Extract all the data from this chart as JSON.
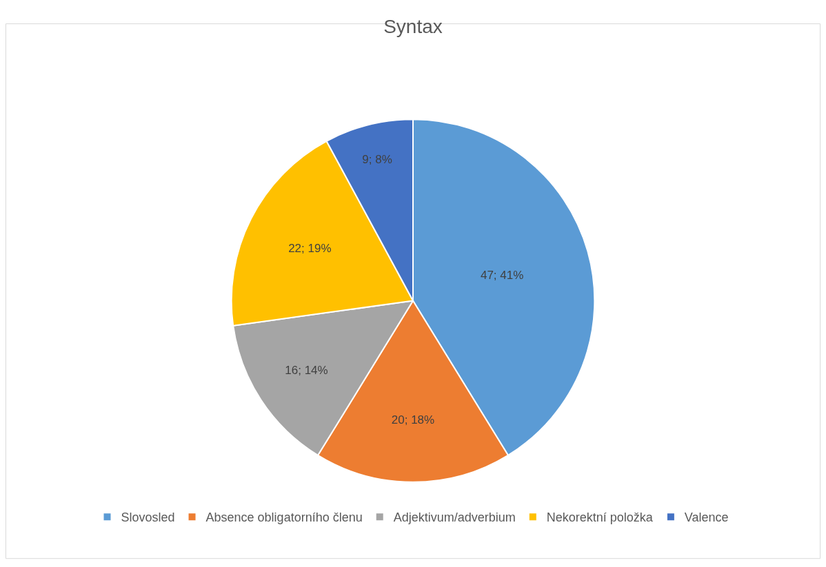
{
  "chart_data": {
    "type": "pie",
    "title": "Syntax",
    "categories": [
      "Slovosled",
      "Absence obligatorního členu",
      "Adjektivum/adverbium",
      "Nekorektní položka",
      "Valence"
    ],
    "values": [
      47,
      20,
      16,
      22,
      9
    ],
    "colors": [
      "#5b9bd5",
      "#ed7d31",
      "#a5a5a5",
      "#ffc000",
      "#4472c4"
    ],
    "value_labels": [
      "47; 41%",
      "20; 18%",
      "16; 14%",
      "22; 19%",
      "9; 8%"
    ],
    "legend": "bottom"
  }
}
